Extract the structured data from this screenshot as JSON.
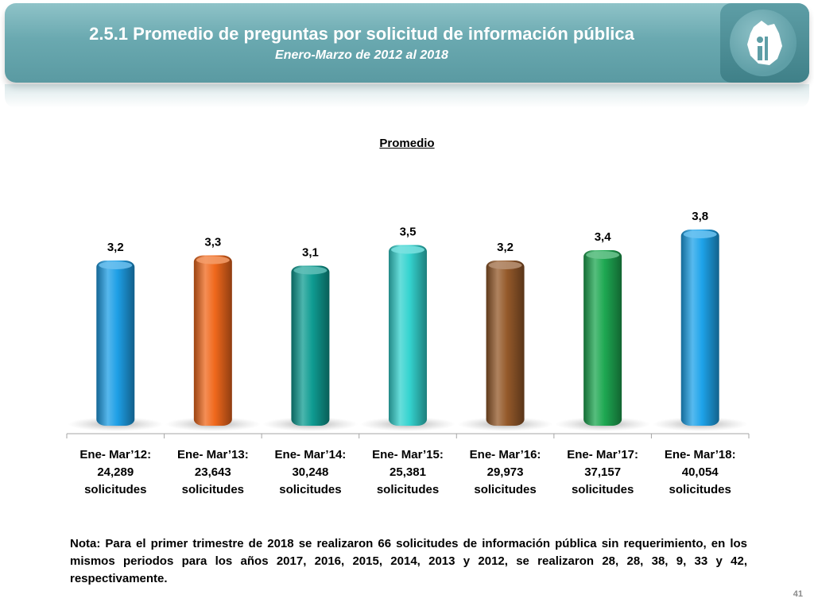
{
  "header": {
    "title": "2.5.1 Promedio de preguntas por solicitud de información pública",
    "subtitle": "Enero-Marzo de 2012 al 2018"
  },
  "chart_data": {
    "type": "bar",
    "title": "Promedio",
    "categories": [
      [
        "Ene- Mar’12:",
        "24,289",
        "solicitudes"
      ],
      [
        "Ene- Mar’13:",
        "23,643",
        "solicitudes"
      ],
      [
        "Ene- Mar’14:",
        "30,248",
        "solicitudes"
      ],
      [
        "Ene- Mar’15:",
        "25,381",
        "solicitudes"
      ],
      [
        "Ene- Mar’16:",
        "29,973",
        "solicitudes"
      ],
      [
        "Ene- Mar’17:",
        "37,157",
        "solicitudes"
      ],
      [
        "Ene- Mar’18:",
        "40,054",
        "solicitudes"
      ]
    ],
    "values": [
      3.2,
      3.3,
      3.1,
      3.5,
      3.2,
      3.4,
      3.8
    ],
    "value_labels": [
      "3,2",
      "3,3",
      "3,1",
      "3,5",
      "3,2",
      "3,4",
      "3,8"
    ],
    "colors": [
      "#1e9fe6",
      "#f0681c",
      "#0f9c92",
      "#34d3cf",
      "#94592a",
      "#1ea852",
      "#1ea3ea"
    ],
    "ylim": [
      0,
      4
    ]
  },
  "note": "Nota: Para el primer trimestre de 2018 se realizaron 66 solicitudes de información pública sin requerimiento, en los mismos periodos para los años 2017, 2016, 2015, 2014, 2013 y 2012, se realizaron 28, 28, 38, 9, 33 y 42, respectivamente.",
  "page_number": "41"
}
